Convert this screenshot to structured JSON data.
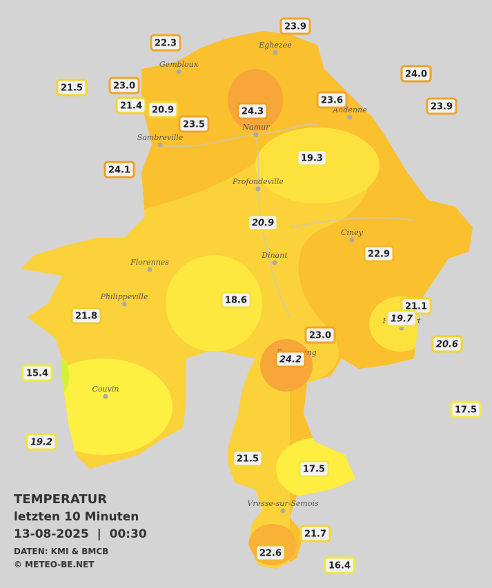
{
  "legend": {
    "title": "TEMPERATUR",
    "subtitle": "letzten 10 Minuten",
    "timestamp": "13-08-2025  |  00:30",
    "source": "DATEN: KMI & BMCB",
    "credit": "© METEO-BE.NET"
  },
  "cities": [
    "Eghezee",
    "Gembloux",
    "Andenne",
    "Namur",
    "Sambreville",
    "Profondeville",
    "Ciney",
    "Dinant",
    "Florennes",
    "Philippeville",
    "Rochefort",
    "Beauraing",
    "Couvin",
    "Vresse-sur-Semois"
  ],
  "stations": [
    {
      "value": 22.3,
      "label": "22.3",
      "italic": false,
      "color": "#f0a52a"
    },
    {
      "value": 23.9,
      "label": "23.9",
      "italic": false,
      "color": "#f0a52a"
    },
    {
      "value": 24.0,
      "label": "24.0",
      "italic": false,
      "color": "#f0a020"
    },
    {
      "value": 21.5,
      "label": "21.5",
      "italic": false,
      "color": "#f3d531"
    },
    {
      "value": 23.0,
      "label": "23.0",
      "italic": false,
      "color": "#f0a52a"
    },
    {
      "value": 21.4,
      "label": "21.4",
      "italic": false,
      "color": "#f3d531"
    },
    {
      "value": 20.9,
      "label": "20.9",
      "italic": false,
      "color": "#f3d531"
    },
    {
      "value": 24.3,
      "label": "24.3",
      "italic": false,
      "color": "#f0a020"
    },
    {
      "value": 23.6,
      "label": "23.6",
      "italic": false,
      "color": "#f0a52a"
    },
    {
      "value": 23.9,
      "label": "23.9",
      "italic": false,
      "color": "#f0a52a"
    },
    {
      "value": 23.5,
      "label": "23.5",
      "italic": false,
      "color": "#f0a52a"
    },
    {
      "value": 24.1,
      "label": "24.1",
      "italic": false,
      "color": "#f0a020"
    },
    {
      "value": 19.3,
      "label": "19.3",
      "italic": false,
      "color": "#f5e23a"
    },
    {
      "value": 20.9,
      "label": "20.9",
      "italic": true,
      "color": "#f3d531"
    },
    {
      "value": 22.9,
      "label": "22.9",
      "italic": false,
      "color": "#f2b82c"
    },
    {
      "value": 18.6,
      "label": "18.6",
      "italic": false,
      "color": "#f5e23a"
    },
    {
      "value": 21.8,
      "label": "21.8",
      "italic": false,
      "color": "#f3c830"
    },
    {
      "value": 21.1,
      "label": "21.1",
      "italic": false,
      "color": "#f3d531"
    },
    {
      "value": 19.7,
      "label": "19.7",
      "italic": true,
      "color": "#f5e23a"
    },
    {
      "value": 23.0,
      "label": "23.0",
      "italic": false,
      "color": "#f0a52a"
    },
    {
      "value": 20.6,
      "label": "20.6",
      "italic": true,
      "color": "#f3d531"
    },
    {
      "value": 24.2,
      "label": "24.2",
      "italic": true,
      "color": "#f0a020"
    },
    {
      "value": 15.4,
      "label": "15.4",
      "italic": false,
      "color": "#e8f03a"
    },
    {
      "value": 17.5,
      "label": "17.5",
      "italic": false,
      "color": "#f2ea3a"
    },
    {
      "value": 19.2,
      "label": "19.2",
      "italic": true,
      "color": "#f5e23a"
    },
    {
      "value": 21.5,
      "label": "21.5",
      "italic": false,
      "color": "#f3d531"
    },
    {
      "value": 17.5,
      "label": "17.5",
      "italic": false,
      "color": "#f2ea3a"
    },
    {
      "value": 21.7,
      "label": "21.7",
      "italic": false,
      "color": "#f3d531"
    },
    {
      "value": 22.6,
      "label": "22.6",
      "italic": false,
      "color": "#f2b82c"
    },
    {
      "value": 16.4,
      "label": "16.4",
      "italic": false,
      "color": "#f2ea3a"
    }
  ]
}
